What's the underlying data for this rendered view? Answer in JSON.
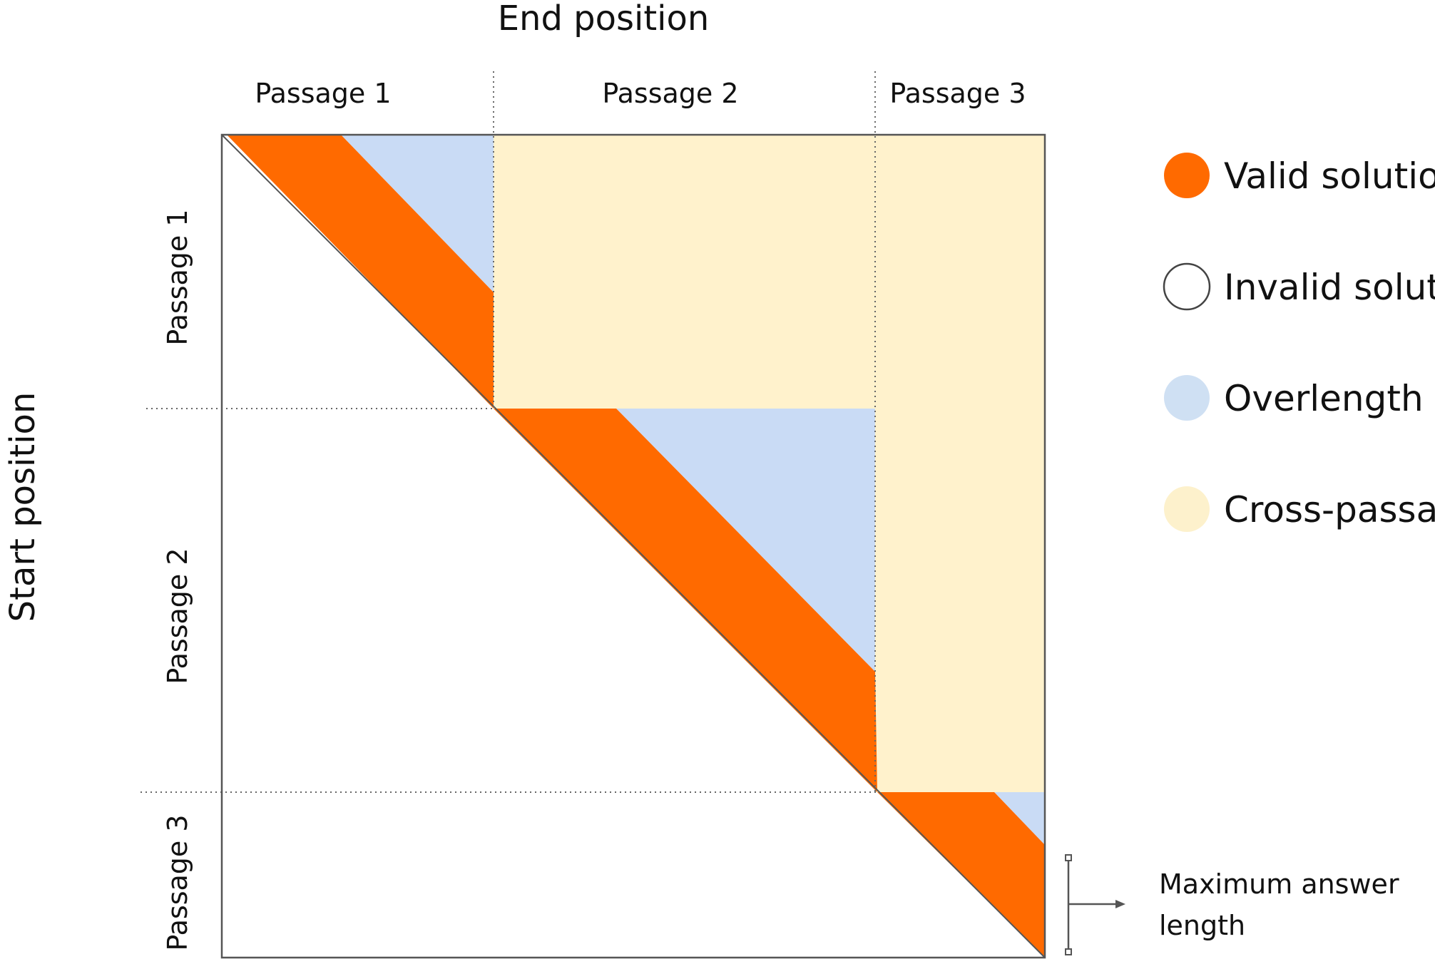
{
  "axes": {
    "x_title": "End position",
    "y_title": "Start position"
  },
  "passages": [
    "Passage 1",
    "Passage 2",
    "Passage 3"
  ],
  "legend": [
    {
      "label": "Valid solution",
      "color": "#ff6a00",
      "style": "filled"
    },
    {
      "label": "Invalid solution",
      "color": "#ffffff",
      "style": "outline"
    },
    {
      "label": "Overlength",
      "color": "#cfe0f3",
      "style": "filled"
    },
    {
      "label": "Cross-passage",
      "color": "#fdf1cc",
      "style": "filled"
    }
  ],
  "annotation": {
    "line1": "Maximum answer",
    "line2": "length"
  },
  "colors": {
    "valid": "#ff6a00",
    "overlength": "#c9dbf5",
    "cross": "#fff2cc",
    "border": "#555555"
  }
}
